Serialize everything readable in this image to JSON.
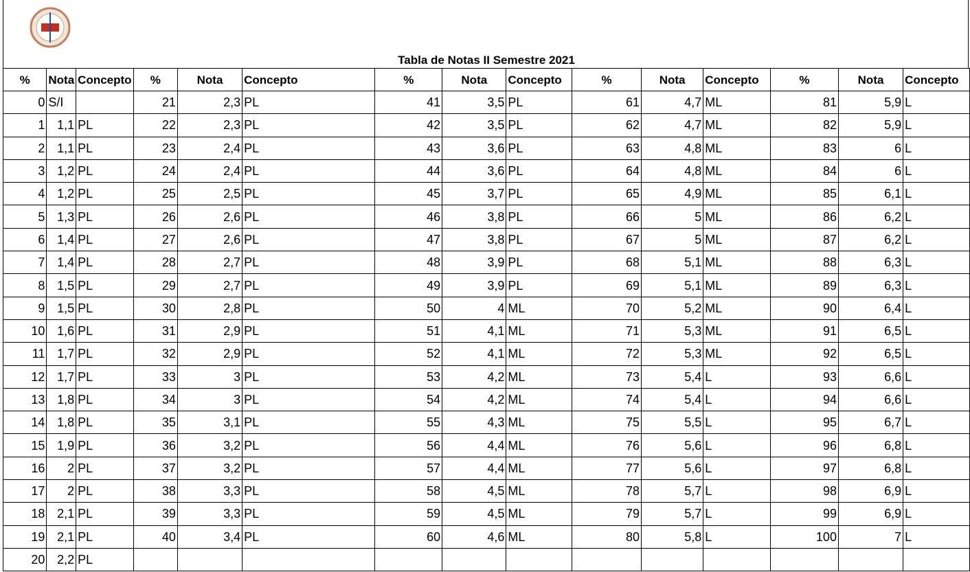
{
  "title": "Tabla de Notas II Semestre 2021",
  "table": {
    "header": [
      "%",
      "Nota",
      "Concepto",
      "%",
      "Nota",
      "Concepto",
      "%",
      "Nota",
      "Concepto",
      "%",
      "Nota",
      "Concepto",
      "%",
      "Nota",
      "Concepto"
    ],
    "rows": [
      [
        "0",
        "S/I",
        null,
        "21",
        "2,3",
        "PL",
        "41",
        "3,5",
        "PL",
        "61",
        "4,7",
        "ML",
        "81",
        "5,9",
        "L"
      ],
      [
        "1",
        "1,1",
        "PL",
        "22",
        "2,3",
        "PL",
        "42",
        "3,5",
        "PL",
        "62",
        "4,7",
        "ML",
        "82",
        "5,9",
        "L"
      ],
      [
        "2",
        "1,1",
        "PL",
        "23",
        "2,4",
        "PL",
        "43",
        "3,6",
        "PL",
        "63",
        "4,8",
        "ML",
        "83",
        "6",
        "L"
      ],
      [
        "3",
        "1,2",
        "PL",
        "24",
        "2,4",
        "PL",
        "44",
        "3,6",
        "PL",
        "64",
        "4,8",
        "ML",
        "84",
        "6",
        "L"
      ],
      [
        "4",
        "1,2",
        "PL",
        "25",
        "2,5",
        "PL",
        "45",
        "3,7",
        "PL",
        "65",
        "4,9",
        "ML",
        "85",
        "6,1",
        "L"
      ],
      [
        "5",
        "1,3",
        "PL",
        "26",
        "2,6",
        "PL",
        "46",
        "3,8",
        "PL",
        "66",
        "5",
        "ML",
        "86",
        "6,2",
        "L"
      ],
      [
        "6",
        "1,4",
        "PL",
        "27",
        "2,6",
        "PL",
        "47",
        "3,8",
        "PL",
        "67",
        "5",
        "ML",
        "87",
        "6,2",
        "L"
      ],
      [
        "7",
        "1,4",
        "PL",
        "28",
        "2,7",
        "PL",
        "48",
        "3,9",
        "PL",
        "68",
        "5,1",
        "ML",
        "88",
        "6,3",
        "L"
      ],
      [
        "8",
        "1,5",
        "PL",
        "29",
        "2,7",
        "PL",
        "49",
        "3,9",
        "PL",
        "69",
        "5,1",
        "ML",
        "89",
        "6,3",
        "L"
      ],
      [
        "9",
        "1,5",
        "PL",
        "30",
        "2,8",
        "PL",
        "50",
        "4",
        "ML",
        "70",
        "5,2",
        "ML",
        "90",
        "6,4",
        "L"
      ],
      [
        "10",
        "1,6",
        "PL",
        "31",
        "2,9",
        "PL",
        "51",
        "4,1",
        "ML",
        "71",
        "5,3",
        "ML",
        "91",
        "6,5",
        "L"
      ],
      [
        "11",
        "1,7",
        "PL",
        "32",
        "2,9",
        "PL",
        "52",
        "4,1",
        "ML",
        "72",
        "5,3",
        "ML",
        "92",
        "6,5",
        "L"
      ],
      [
        "12",
        "1,7",
        "PL",
        "33",
        "3",
        "PL",
        "53",
        "4,2",
        "ML",
        "73",
        "5,4",
        "L",
        "93",
        "6,6",
        "L"
      ],
      [
        "13",
        "1,8",
        "PL",
        "34",
        "3",
        "PL",
        "54",
        "4,2",
        "ML",
        "74",
        "5,4",
        "L",
        "94",
        "6,6",
        "L"
      ],
      [
        "14",
        "1,8",
        "PL",
        "35",
        "3,1",
        "PL",
        "55",
        "4,3",
        "ML",
        "75",
        "5,5",
        "L",
        "95",
        "6,7",
        "L"
      ],
      [
        "15",
        "1,9",
        "PL",
        "36",
        "3,2",
        "PL",
        "56",
        "4,4",
        "ML",
        "76",
        "5,6",
        "L",
        "96",
        "6,8",
        "L"
      ],
      [
        "16",
        "2",
        "PL",
        "37",
        "3,2",
        "PL",
        "57",
        "4,4",
        "ML",
        "77",
        "5,6",
        "L",
        "97",
        "6,8",
        "L"
      ],
      [
        "17",
        "2",
        "PL",
        "38",
        "3,3",
        "PL",
        "58",
        "4,5",
        "ML",
        "78",
        "5,7",
        "L",
        "98",
        "6,9",
        "L"
      ],
      [
        "18",
        "2,1",
        "PL",
        "39",
        "3,3",
        "PL",
        "59",
        "4,5",
        "ML",
        "79",
        "5,7",
        "L",
        "99",
        "6,9",
        "L"
      ],
      [
        "19",
        "2,1",
        "PL",
        "40",
        "3,4",
        "PL",
        "60",
        "4,6",
        "ML",
        "80",
        "5,8",
        "L",
        "100",
        "7",
        "L"
      ],
      [
        "20",
        "2,2",
        "PL"
      ]
    ]
  }
}
